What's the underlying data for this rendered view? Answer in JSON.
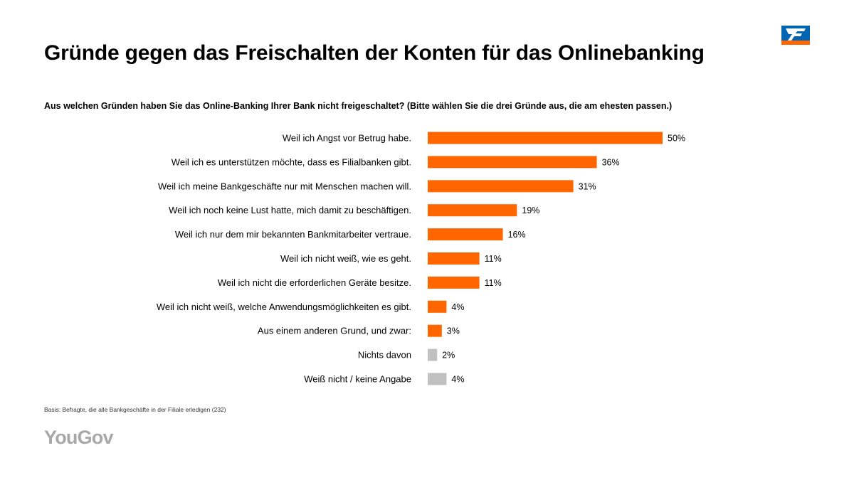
{
  "title": "Gründe gegen das Freischalten der Konten für das Onlinebanking",
  "question": "Aus welchen Gründen haben Sie das Online-Banking Ihrer Bank nicht freigeschaltet? (Bitte wählen Sie die drei Gründe aus, die am ehesten passen.)",
  "footnote": "Basis: Befragte, die alle Bankgeschäfte in der Filiale erledigen (232)",
  "brand": "YouGov",
  "colors": {
    "highlight": "#ff6600",
    "neutral": "#c0c0c0",
    "logo_blue": "#0066b3",
    "logo_orange": "#ff6600"
  },
  "chart_data": {
    "type": "bar",
    "orientation": "horizontal",
    "title": "Gründe gegen das Freischalten der Konten für das Onlinebanking",
    "unit": "%",
    "xlim": [
      0,
      50
    ],
    "categories": [
      "Weil ich Angst vor Betrug habe.",
      "Weil ich es unterstützen möchte, dass es Filialbanken gibt.",
      "Weil ich meine Bankgeschäfte nur mit Menschen machen will.",
      "Weil ich noch keine Lust hatte, mich damit zu beschäftigen.",
      "Weil ich nur dem mir bekannten Bankmitarbeiter vertraue.",
      "Weil ich nicht weiß, wie es geht.",
      "Weil ich nicht die erforderlichen Geräte besitze.",
      "Weil ich nicht weiß, welche Anwendungsmöglichkeiten es gibt.",
      "Aus einem anderen Grund, und zwar:",
      "Nichts davon",
      "Weiß nicht / keine Angabe"
    ],
    "values": [
      50,
      36,
      31,
      19,
      16,
      11,
      11,
      4,
      3,
      2,
      4
    ],
    "value_labels": [
      "50%",
      "36%",
      "31%",
      "19%",
      "16%",
      "11%",
      "11%",
      "4%",
      "3%",
      "2%",
      "4%"
    ],
    "bar_colors": [
      "highlight",
      "highlight",
      "highlight",
      "highlight",
      "highlight",
      "highlight",
      "highlight",
      "highlight",
      "highlight",
      "neutral",
      "neutral"
    ]
  }
}
